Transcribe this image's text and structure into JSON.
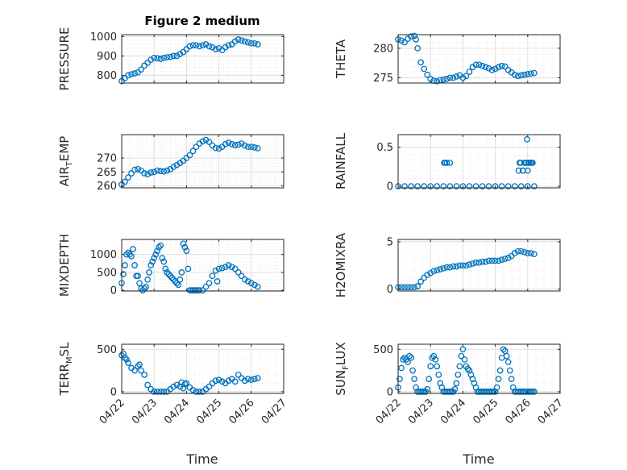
{
  "figure": {
    "title": "Figure 2 medium",
    "xlabel": "Time"
  },
  "colors": {
    "marker": "#0072BD",
    "axis": "#262626",
    "grid": "#DFDFDF",
    "minor_grid": "#ECECEC",
    "background": "#ffffff"
  },
  "chart_data": [
    {
      "type": "scatter",
      "panel": "PRESSURE",
      "ylabel": {
        "parts": [
          {
            "text": "PRESSURE",
            "sub": false
          }
        ]
      },
      "ylim": [
        760,
        1010
      ],
      "yticks": [
        800,
        900,
        1000
      ],
      "ytick_labels": [
        "800",
        "900",
        "1000"
      ],
      "xlim": [
        0,
        5
      ],
      "xticks": [
        0,
        1,
        2,
        3,
        4,
        5
      ],
      "xtick_labels": [],
      "x": [
        0,
        0.1,
        0.2,
        0.3,
        0.4,
        0.5,
        0.6,
        0.7,
        0.8,
        0.9,
        1.0,
        1.1,
        1.2,
        1.3,
        1.4,
        1.5,
        1.6,
        1.7,
        1.8,
        1.9,
        2.0,
        2.1,
        2.2,
        2.3,
        2.4,
        2.5,
        2.6,
        2.7,
        2.8,
        2.9,
        3.0,
        3.1,
        3.2,
        3.3,
        3.4,
        3.5,
        3.6,
        3.7,
        3.8,
        3.9,
        4.0,
        4.1,
        4.2
      ],
      "y": [
        770,
        785,
        800,
        805,
        810,
        815,
        830,
        850,
        865,
        880,
        890,
        888,
        885,
        890,
        893,
        895,
        900,
        900,
        910,
        920,
        935,
        950,
        955,
        955,
        950,
        955,
        960,
        950,
        945,
        935,
        940,
        930,
        945,
        955,
        960,
        975,
        985,
        980,
        975,
        970,
        965,
        965,
        960
      ]
    },
    {
      "type": "scatter",
      "panel": "THETA",
      "ylabel": {
        "parts": [
          {
            "text": "THETA",
            "sub": false
          }
        ]
      },
      "ylim": [
        274.1,
        282.3
      ],
      "yticks": [
        275,
        280
      ],
      "ytick_labels": [
        "275",
        "280"
      ],
      "xlim": [
        0,
        5
      ],
      "xticks": [
        0,
        1,
        2,
        3,
        4,
        5
      ],
      "xtick_labels": [],
      "x": [
        0,
        0.1,
        0.2,
        0.3,
        0.4,
        0.5,
        0.55,
        0.6,
        0.7,
        0.8,
        0.9,
        1.0,
        1.1,
        1.2,
        1.3,
        1.4,
        1.5,
        1.6,
        1.7,
        1.8,
        1.9,
        2.0,
        2.1,
        2.2,
        2.3,
        2.4,
        2.5,
        2.6,
        2.7,
        2.8,
        2.9,
        3.0,
        3.1,
        3.2,
        3.3,
        3.4,
        3.5,
        3.6,
        3.7,
        3.8,
        3.9,
        4.0,
        4.1,
        4.2
      ],
      "y": [
        281.5,
        281.3,
        281.0,
        281.6,
        282.0,
        282.1,
        281.5,
        280.0,
        277.6,
        276.5,
        275.5,
        274.8,
        274.5,
        274.4,
        274.6,
        274.7,
        274.8,
        275.0,
        275.0,
        275.2,
        275.4,
        275.0,
        275.3,
        276.0,
        276.8,
        277.2,
        277.2,
        277.0,
        276.8,
        276.6,
        276.3,
        276.5,
        276.8,
        277.0,
        276.9,
        276.3,
        275.9,
        275.5,
        275.3,
        275.4,
        275.5,
        275.6,
        275.7,
        275.8
      ]
    },
    {
      "type": "scatter",
      "panel": "AIR_TEMP",
      "ylabel": {
        "parts": [
          {
            "text": "AIR",
            "sub": false
          },
          {
            "text": "T",
            "sub": true
          },
          {
            "text": "EMP",
            "sub": false
          }
        ]
      },
      "ylim": [
        259.3,
        278.4
      ],
      "yticks": [
        260,
        265,
        270
      ],
      "ytick_labels": [
        "260",
        "265",
        "270"
      ],
      "xlim": [
        0,
        5
      ],
      "xticks": [
        0,
        1,
        2,
        3,
        4,
        5
      ],
      "xtick_labels": [],
      "x": [
        0,
        0.1,
        0.2,
        0.3,
        0.4,
        0.5,
        0.6,
        0.7,
        0.8,
        0.9,
        1.0,
        1.1,
        1.2,
        1.3,
        1.4,
        1.5,
        1.6,
        1.7,
        1.8,
        1.9,
        2.0,
        2.1,
        2.2,
        2.3,
        2.4,
        2.5,
        2.6,
        2.7,
        2.8,
        2.9,
        3.0,
        3.1,
        3.2,
        3.3,
        3.4,
        3.5,
        3.6,
        3.7,
        3.8,
        3.9,
        4.0,
        4.1,
        4.2
      ],
      "y": [
        260.5,
        261.5,
        263.0,
        264.5,
        265.8,
        266.0,
        265.5,
        264.5,
        264.2,
        264.8,
        265.0,
        265.5,
        265.3,
        265.2,
        265.5,
        266.0,
        266.8,
        267.5,
        268.2,
        269.0,
        270.0,
        271.0,
        272.5,
        274.0,
        275.2,
        276.0,
        276.5,
        275.8,
        274.5,
        273.6,
        273.4,
        274.0,
        275.0,
        275.5,
        275.0,
        274.6,
        274.8,
        275.2,
        274.5,
        274.0,
        274.0,
        273.8,
        273.5
      ]
    },
    {
      "type": "scatter",
      "panel": "RAINFALL",
      "ylabel": {
        "parts": [
          {
            "text": "RAINFALL",
            "sub": false
          }
        ]
      },
      "ylim": [
        -0.02,
        0.66
      ],
      "yticks": [
        0,
        0.5
      ],
      "ytick_labels": [
        "0",
        "0.5"
      ],
      "xlim": [
        0,
        5
      ],
      "xticks": [
        0,
        1,
        2,
        3,
        4,
        5
      ],
      "xtick_labels": [],
      "x": [
        0.0,
        0.2,
        0.4,
        0.6,
        0.8,
        1.0,
        1.2,
        1.4,
        1.6,
        1.8,
        2.0,
        2.2,
        2.4,
        2.6,
        2.8,
        3.0,
        3.2,
        3.4,
        3.6,
        3.8,
        4.0,
        4.2,
        1.42,
        1.5,
        1.6,
        1.45,
        3.72,
        3.78,
        3.85,
        3.9,
        3.95,
        4.0,
        4.05,
        4.1,
        4.15,
        3.75,
        3.85,
        3.95,
        4.02,
        4.12,
        3.98
      ],
      "y": [
        0,
        0,
        0,
        0,
        0,
        0,
        0,
        0,
        0,
        0,
        0,
        0,
        0,
        0,
        0,
        0,
        0,
        0,
        0,
        0,
        0,
        0,
        0.3,
        0.3,
        0.3,
        0.3,
        0.2,
        0.3,
        0.2,
        0.3,
        0.3,
        0.2,
        0.3,
        0.3,
        0.3,
        0.3,
        0.2,
        0.3,
        0.3,
        0.3,
        0.6
      ]
    },
    {
      "type": "scatter",
      "panel": "MIXDEPTH",
      "ylabel": {
        "parts": [
          {
            "text": "MIXDEPTH",
            "sub": false
          }
        ]
      },
      "ylim": [
        -20,
        1420
      ],
      "yticks": [
        0,
        500,
        1000
      ],
      "ytick_labels": [
        "0",
        "500",
        "1000"
      ],
      "xlim": [
        0,
        5
      ],
      "xticks": [
        0,
        1,
        2,
        3,
        4,
        5
      ],
      "xtick_labels": [],
      "x": [
        0.0,
        0.05,
        0.1,
        0.15,
        0.2,
        0.25,
        0.3,
        0.35,
        0.4,
        0.45,
        0.5,
        0.55,
        0.6,
        0.65,
        0.7,
        0.75,
        0.8,
        0.85,
        0.9,
        0.95,
        1.0,
        1.05,
        1.1,
        1.15,
        1.2,
        1.25,
        1.3,
        1.35,
        1.4,
        1.45,
        1.5,
        1.55,
        1.6,
        1.65,
        1.7,
        1.75,
        1.8,
        1.85,
        1.9,
        1.95,
        2.0,
        2.05,
        2.1,
        2.15,
        2.2,
        2.25,
        2.3,
        2.35,
        2.4,
        2.5,
        2.6,
        2.7,
        2.8,
        2.9,
        3.0,
        3.1,
        3.2,
        3.3,
        3.4,
        3.5,
        3.6,
        3.7,
        3.8,
        3.9,
        4.0,
        4.1,
        4.2,
        2.95
      ],
      "y": [
        200,
        450,
        700,
        1000,
        1050,
        1000,
        950,
        1150,
        700,
        400,
        400,
        200,
        50,
        0,
        50,
        100,
        300,
        500,
        700,
        800,
        900,
        1000,
        1100,
        1200,
        1250,
        900,
        800,
        600,
        500,
        450,
        400,
        350,
        300,
        250,
        200,
        150,
        300,
        500,
        1300,
        1200,
        1100,
        600,
        0,
        0,
        0,
        0,
        0,
        0,
        0,
        0,
        100,
        200,
        400,
        550,
        600,
        620,
        650,
        700,
        650,
        600,
        500,
        400,
        300,
        250,
        200,
        150,
        100,
        250
      ]
    },
    {
      "type": "scatter",
      "panel": "H2OMIXRA",
      "ylabel": {
        "parts": [
          {
            "text": "H2OMIXRA",
            "sub": false
          }
        ]
      },
      "ylim": [
        -0.2,
        5.25
      ],
      "yticks": [
        0,
        5
      ],
      "ytick_labels": [
        "0",
        "5"
      ],
      "xlim": [
        0,
        5
      ],
      "xticks": [
        0,
        1,
        2,
        3,
        4,
        5
      ],
      "xtick_labels": [],
      "x": [
        0,
        0.1,
        0.2,
        0.3,
        0.4,
        0.5,
        0.6,
        0.7,
        0.8,
        0.9,
        1.0,
        1.1,
        1.2,
        1.3,
        1.4,
        1.5,
        1.6,
        1.7,
        1.8,
        1.9,
        2.0,
        2.1,
        2.2,
        2.3,
        2.4,
        2.5,
        2.6,
        2.7,
        2.8,
        2.9,
        3.0,
        3.1,
        3.2,
        3.3,
        3.4,
        3.5,
        3.6,
        3.7,
        3.8,
        3.9,
        4.0,
        4.1,
        4.2
      ],
      "y": [
        0.2,
        0.2,
        0.2,
        0.2,
        0.2,
        0.2,
        0.3,
        0.8,
        1.2,
        1.5,
        1.7,
        1.9,
        2.0,
        2.1,
        2.2,
        2.3,
        2.3,
        2.4,
        2.4,
        2.5,
        2.5,
        2.5,
        2.6,
        2.7,
        2.8,
        2.8,
        2.9,
        2.9,
        3.0,
        3.0,
        3.0,
        3.0,
        3.1,
        3.2,
        3.3,
        3.5,
        3.8,
        4.0,
        4.0,
        3.9,
        3.8,
        3.8,
        3.7
      ]
    },
    {
      "type": "scatter",
      "panel": "TERR_MSL",
      "ylabel": {
        "parts": [
          {
            "text": "TERR",
            "sub": false
          },
          {
            "text": "M",
            "sub": true
          },
          {
            "text": "SL",
            "sub": false
          }
        ]
      },
      "ylim": [
        -20,
        560
      ],
      "yticks": [
        0,
        500
      ],
      "ytick_labels": [
        "0",
        "500"
      ],
      "xlim": [
        0,
        5
      ],
      "xticks": [
        0,
        1,
        2,
        3,
        4,
        5
      ],
      "xtick_labels": [
        "04/22",
        "04/23",
        "04/24",
        "04/25",
        "04/26",
        "04/27"
      ],
      "x": [
        0,
        0.1,
        0.2,
        0.3,
        0.4,
        0.5,
        0.6,
        0.7,
        0.8,
        0.9,
        1.0,
        1.1,
        1.2,
        1.3,
        1.4,
        1.5,
        1.6,
        1.7,
        1.8,
        1.9,
        2.0,
        2.1,
        2.2,
        2.3,
        2.4,
        2.5,
        2.6,
        2.7,
        2.8,
        2.9,
        3.0,
        3.1,
        3.2,
        3.3,
        3.4,
        3.5,
        3.6,
        3.7,
        3.8,
        3.9,
        4.0,
        4.1,
        4.2,
        0.05,
        0.15,
        0.55,
        1.85,
        1.95
      ],
      "y": [
        430,
        400,
        340,
        280,
        250,
        300,
        250,
        200,
        80,
        30,
        0,
        0,
        0,
        0,
        0,
        30,
        60,
        80,
        60,
        40,
        100,
        50,
        20,
        0,
        0,
        0,
        30,
        60,
        100,
        130,
        140,
        120,
        100,
        130,
        150,
        120,
        200,
        160,
        130,
        150,
        140,
        150,
        160,
        450,
        380,
        320,
        110,
        90
      ]
    },
    {
      "type": "scatter",
      "panel": "SUN_FLUX",
      "ylabel": {
        "parts": [
          {
            "text": "SUN",
            "sub": false
          },
          {
            "text": "F",
            "sub": true
          },
          {
            "text": "LUX",
            "sub": false
          }
        ]
      },
      "ylim": [
        -20,
        560
      ],
      "yticks": [
        0,
        500
      ],
      "ytick_labels": [
        "0",
        "500"
      ],
      "xlim": [
        0,
        5
      ],
      "xticks": [
        0,
        1,
        2,
        3,
        4,
        5
      ],
      "xtick_labels": [
        "04/22",
        "04/23",
        "04/24",
        "04/25",
        "04/26",
        "04/27"
      ],
      "x": [
        0.0,
        0.05,
        0.1,
        0.15,
        0.2,
        0.25,
        0.3,
        0.35,
        0.4,
        0.45,
        0.5,
        0.55,
        0.6,
        0.65,
        0.7,
        0.75,
        0.8,
        0.85,
        0.9,
        0.95,
        1.0,
        1.05,
        1.1,
        1.15,
        1.2,
        1.25,
        1.3,
        1.35,
        1.4,
        1.45,
        1.5,
        1.55,
        1.6,
        1.65,
        1.7,
        1.75,
        1.8,
        1.85,
        1.9,
        1.95,
        2.0,
        2.05,
        2.1,
        2.15,
        2.2,
        2.25,
        2.3,
        2.35,
        2.4,
        2.45,
        2.5,
        2.55,
        2.6,
        2.65,
        2.7,
        2.75,
        2.8,
        2.85,
        2.9,
        2.95,
        3.0,
        3.05,
        3.1,
        3.15,
        3.2,
        3.25,
        3.3,
        3.35,
        3.4,
        3.45,
        3.5,
        3.55,
        3.6,
        3.65,
        3.7,
        3.75,
        3.8,
        3.85,
        3.9,
        3.95,
        4.0,
        4.05,
        4.1,
        4.15,
        4.2
      ],
      "y": [
        50,
        150,
        280,
        380,
        400,
        380,
        350,
        420,
        400,
        250,
        150,
        50,
        0,
        0,
        0,
        0,
        0,
        0,
        30,
        150,
        300,
        400,
        420,
        380,
        300,
        200,
        100,
        50,
        0,
        0,
        0,
        0,
        0,
        0,
        0,
        30,
        100,
        200,
        300,
        420,
        500,
        380,
        300,
        270,
        250,
        200,
        150,
        100,
        50,
        0,
        0,
        0,
        0,
        0,
        0,
        0,
        0,
        0,
        0,
        0,
        0,
        50,
        150,
        250,
        400,
        500,
        480,
        420,
        350,
        250,
        150,
        50,
        0,
        0,
        0,
        0,
        0,
        0,
        0,
        0,
        0,
        0,
        0,
        0,
        0
      ]
    }
  ]
}
